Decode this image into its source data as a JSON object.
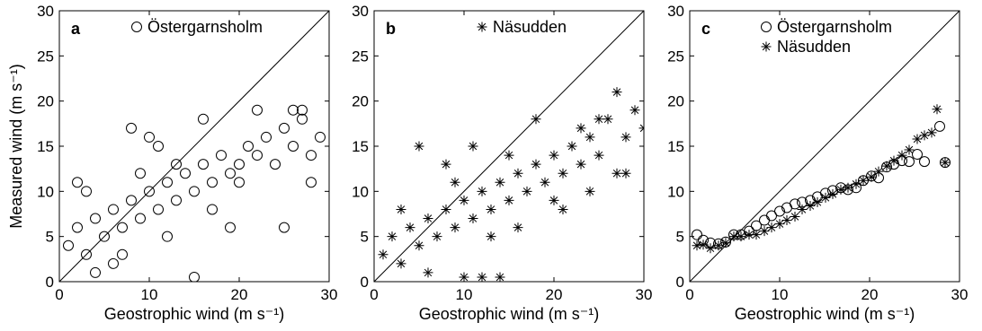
{
  "chart_data": [
    {
      "type": "scatter",
      "panel_label": "a",
      "xlabel": "Geostrophic wind (m s⁻¹)",
      "ylabel": "Measured wind (m s⁻¹)",
      "xlim": [
        0,
        30
      ],
      "ylim": [
        0,
        30
      ],
      "x_ticks": [
        "0",
        "10",
        "20",
        "30"
      ],
      "y_ticks": [
        "0",
        "5",
        "10",
        "15",
        "20",
        "25",
        "30"
      ],
      "legend_position": "top-right",
      "reference_line": "1:1",
      "series": [
        {
          "name": "Östergarnsholm",
          "marker": "circle",
          "notes": "dense cloud; roughly 0.55×geostrophic + 2",
          "points": [
            [
              1,
              4
            ],
            [
              2,
              6
            ],
            [
              3,
              3
            ],
            [
              4,
              7
            ],
            [
              5,
              5
            ],
            [
              6,
              8
            ],
            [
              7,
              6
            ],
            [
              8,
              9
            ],
            [
              9,
              7
            ],
            [
              10,
              10
            ],
            [
              11,
              8
            ],
            [
              12,
              11
            ],
            [
              13,
              9
            ],
            [
              14,
              12
            ],
            [
              15,
              10
            ],
            [
              16,
              13
            ],
            [
              17,
              11
            ],
            [
              18,
              14
            ],
            [
              19,
              12
            ],
            [
              20,
              13
            ],
            [
              21,
              15
            ],
            [
              22,
              14
            ],
            [
              23,
              16
            ],
            [
              24,
              13
            ],
            [
              25,
              17
            ],
            [
              26,
              15
            ],
            [
              27,
              18
            ],
            [
              28,
              14
            ],
            [
              2,
              11
            ],
            [
              8,
              17
            ],
            [
              10,
              16
            ],
            [
              16,
              18
            ],
            [
              15,
              0.5
            ],
            [
              25,
              6
            ],
            [
              28,
              11
            ],
            [
              4,
              1
            ],
            [
              6,
              2
            ],
            [
              3,
              10
            ],
            [
              12,
              5
            ],
            [
              19,
              6
            ],
            [
              22,
              19
            ],
            [
              26,
              19
            ],
            [
              27,
              19
            ],
            [
              29,
              16
            ],
            [
              9,
              12
            ],
            [
              13,
              13
            ],
            [
              7,
              3
            ],
            [
              11,
              15
            ],
            [
              17,
              8
            ],
            [
              20,
              11
            ]
          ]
        }
      ]
    },
    {
      "type": "scatter",
      "panel_label": "b",
      "xlabel": "Geostrophic wind (m s⁻¹)",
      "ylabel": "",
      "xlim": [
        0,
        30
      ],
      "ylim": [
        0,
        30
      ],
      "x_ticks": [
        "0",
        "10",
        "20",
        "30"
      ],
      "y_ticks": [
        "0",
        "5",
        "10",
        "15",
        "20",
        "25",
        "30"
      ],
      "legend_position": "top-right",
      "reference_line": "1:1",
      "series": [
        {
          "name": "Näsudden",
          "marker": "asterisk",
          "notes": "dense cloud; roughly 0.6×geostrophic + 1.5",
          "points": [
            [
              1,
              3
            ],
            [
              2,
              5
            ],
            [
              3,
              2
            ],
            [
              4,
              6
            ],
            [
              5,
              4
            ],
            [
              6,
              7
            ],
            [
              7,
              5
            ],
            [
              8,
              8
            ],
            [
              9,
              6
            ],
            [
              10,
              9
            ],
            [
              11,
              7
            ],
            [
              12,
              10
            ],
            [
              13,
              8
            ],
            [
              14,
              11
            ],
            [
              15,
              9
            ],
            [
              16,
              12
            ],
            [
              17,
              10
            ],
            [
              18,
              13
            ],
            [
              19,
              11
            ],
            [
              20,
              14
            ],
            [
              21,
              12
            ],
            [
              22,
              15
            ],
            [
              23,
              13
            ],
            [
              24,
              16
            ],
            [
              25,
              14
            ],
            [
              26,
              18
            ],
            [
              27,
              21
            ],
            [
              28,
              16
            ],
            [
              29,
              19
            ],
            [
              30,
              17
            ],
            [
              5,
              15
            ],
            [
              11,
              15
            ],
            [
              12,
              0.5
            ],
            [
              14,
              0.5
            ],
            [
              10,
              0.5
            ],
            [
              27,
              12
            ],
            [
              28,
              12
            ],
            [
              21,
              8
            ],
            [
              18,
              18
            ],
            [
              25,
              18
            ],
            [
              3,
              8
            ],
            [
              6,
              1
            ],
            [
              8,
              13
            ],
            [
              15,
              14
            ],
            [
              20,
              9
            ],
            [
              23,
              17
            ],
            [
              9,
              11
            ],
            [
              13,
              5
            ],
            [
              16,
              6
            ],
            [
              24,
              10
            ]
          ]
        }
      ]
    },
    {
      "type": "scatter",
      "panel_label": "c",
      "xlabel": "Geostrophic wind (m s⁻¹)",
      "ylabel": "",
      "xlim": [
        0,
        30
      ],
      "ylim": [
        0,
        30
      ],
      "x_ticks": [
        "0",
        "10",
        "20",
        "30"
      ],
      "y_ticks": [
        "0",
        "5",
        "10",
        "15",
        "20",
        "25",
        "30"
      ],
      "legend_position": "top-right",
      "reference_line": "1:1",
      "series": [
        {
          "name": "Östergarnsholm",
          "marker": "circle",
          "points": [
            [
              0.8,
              5.2
            ],
            [
              1.5,
              4.6
            ],
            [
              2.3,
              4.3
            ],
            [
              3.2,
              4.2
            ],
            [
              4.0,
              4.4
            ],
            [
              4.9,
              5.2
            ],
            [
              5.7,
              5.2
            ],
            [
              6.6,
              5.6
            ],
            [
              7.4,
              6.2
            ],
            [
              8.3,
              6.8
            ],
            [
              9.1,
              7.3
            ],
            [
              10.0,
              7.8
            ],
            [
              10.8,
              8.2
            ],
            [
              11.7,
              8.6
            ],
            [
              12.5,
              8.8
            ],
            [
              13.4,
              9.0
            ],
            [
              14.2,
              9.4
            ],
            [
              15.1,
              9.8
            ],
            [
              15.9,
              10.1
            ],
            [
              16.8,
              10.4
            ],
            [
              17.6,
              10.2
            ],
            [
              18.5,
              10.4
            ],
            [
              19.3,
              11.2
            ],
            [
              20.2,
              11.7
            ],
            [
              21.0,
              11.5
            ],
            [
              21.9,
              12.7
            ],
            [
              22.7,
              13.0
            ],
            [
              23.6,
              13.4
            ],
            [
              24.4,
              13.3
            ],
            [
              25.3,
              14.1
            ],
            [
              26.1,
              13.3
            ],
            [
              27.8,
              17.2
            ],
            [
              28.4,
              13.2
            ]
          ]
        },
        {
          "name": "Näsudden",
          "marker": "asterisk",
          "points": [
            [
              0.8,
              4.0
            ],
            [
              1.5,
              4.1
            ],
            [
              2.3,
              3.7
            ],
            [
              3.2,
              4.0
            ],
            [
              4.0,
              4.3
            ],
            [
              4.9,
              5.0
            ],
            [
              5.7,
              5.0
            ],
            [
              6.6,
              5.2
            ],
            [
              7.4,
              5.2
            ],
            [
              8.3,
              5.6
            ],
            [
              9.1,
              6.0
            ],
            [
              10.0,
              6.4
            ],
            [
              10.8,
              6.8
            ],
            [
              11.7,
              7.2
            ],
            [
              12.5,
              8.0
            ],
            [
              13.4,
              8.4
            ],
            [
              14.2,
              8.8
            ],
            [
              15.1,
              9.3
            ],
            [
              15.9,
              9.7
            ],
            [
              16.8,
              10.2
            ],
            [
              17.6,
              10.4
            ],
            [
              18.5,
              10.8
            ],
            [
              19.3,
              11.2
            ],
            [
              20.2,
              11.6
            ],
            [
              21.0,
              12.2
            ],
            [
              21.9,
              12.8
            ],
            [
              22.7,
              13.4
            ],
            [
              23.6,
              14.0
            ],
            [
              24.4,
              14.6
            ],
            [
              25.3,
              15.8
            ],
            [
              26.1,
              16.2
            ],
            [
              26.9,
              16.5
            ],
            [
              27.5,
              19.1
            ],
            [
              28.4,
              13.2
            ]
          ]
        }
      ]
    }
  ]
}
